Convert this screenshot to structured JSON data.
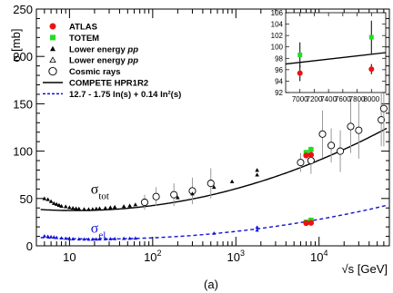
{
  "chart_data": {
    "type": "scatter",
    "ylabel": "σ [mb]",
    "xlabel": "√s [GeV]",
    "caption": "(a)",
    "x_scale": "log",
    "xlim": [
      4,
      70000
    ],
    "ylim": [
      0,
      250
    ],
    "x_ticks": [
      {
        "value": 10,
        "label": "10"
      },
      {
        "value": 100,
        "label": "10",
        "sup": "2"
      },
      {
        "value": 1000,
        "label": "10",
        "sup": "3"
      },
      {
        "value": 10000,
        "label": "10",
        "sup": "4"
      }
    ],
    "y_ticks": [
      0,
      50,
      100,
      150,
      200,
      250
    ],
    "colors": {
      "atlas": "#ee1111",
      "totem": "#22dd22",
      "fit": "#1111cc",
      "lowpp": "#000000",
      "cosmic": "#000000",
      "compete": "#000000",
      "sigma_el": "#1111dd"
    },
    "legend": {
      "placement": "upper-left",
      "entries": [
        {
          "key": "atlas",
          "label": "ATLAS",
          "marker": "circle-filled"
        },
        {
          "key": "totem",
          "label": "TOTEM",
          "marker": "square-filled"
        },
        {
          "key": "lowpp_tot",
          "label": "Lower energy ",
          "label_italic": "pp",
          "marker": "triangle-filled"
        },
        {
          "key": "lowpp_el",
          "label": "Lower energy ",
          "label_italic": "pp",
          "marker": "triangle-open"
        },
        {
          "key": "cosmic",
          "label": "Cosmic rays",
          "marker": "circle-open"
        },
        {
          "key": "compete",
          "label": "COMPETE HPR1R2",
          "marker": "solid-line"
        },
        {
          "key": "fit",
          "label": "12.7 - 1.75 ln(s) + 0.14 ln²(s)",
          "marker": "dashed-line"
        }
      ]
    },
    "annotations": [
      {
        "text": "σ",
        "sub": "tot",
        "x": 18,
        "y": 55,
        "color": "#000000"
      },
      {
        "text": "σ",
        "sub": "el",
        "x": 18,
        "y": 14,
        "color": "#1111dd"
      }
    ],
    "series": [
      {
        "key": "atlas",
        "points": [
          [
            7000,
            95.4,
            1.4
          ],
          [
            8000,
            96.1,
            0.9
          ]
        ],
        "el_points": [
          [
            7000,
            24.0,
            0.6
          ],
          [
            8000,
            24.3,
            0.5
          ]
        ]
      },
      {
        "key": "totem",
        "points": [
          [
            7000,
            98.6,
            2.2
          ],
          [
            8000,
            101.7,
            2.9
          ]
        ],
        "el_points": [
          [
            7000,
            25.1,
            1.1
          ],
          [
            8000,
            27.1,
            1.4
          ]
        ]
      },
      {
        "key": "cosmic",
        "points": [
          [
            6000,
            88,
            10
          ],
          [
            8000,
            90,
            14
          ],
          [
            11000,
            118,
            25
          ],
          [
            14000,
            106,
            18
          ],
          [
            18000,
            100,
            22
          ],
          [
            24000,
            126,
            28
          ],
          [
            30000,
            122,
            30
          ],
          [
            56000,
            133,
            28
          ],
          [
            60000,
            145,
            40
          ],
          [
            80,
            46,
            8
          ],
          [
            110,
            52,
            10
          ],
          [
            180,
            54,
            12
          ],
          [
            300,
            58,
            14
          ],
          [
            500,
            66,
            16
          ]
        ]
      },
      {
        "key": "lowpp_tot",
        "points": [
          [
            5,
            50
          ],
          [
            5.5,
            49
          ],
          [
            6,
            47
          ],
          [
            6.5,
            45
          ],
          [
            7,
            44
          ],
          [
            7.5,
            43
          ],
          [
            8,
            42
          ],
          [
            9,
            41.5
          ],
          [
            10,
            40.5
          ],
          [
            11,
            40
          ],
          [
            12,
            39.5
          ],
          [
            13,
            39.2
          ],
          [
            15,
            38.8
          ],
          [
            17,
            38.6
          ],
          [
            19,
            38.8
          ],
          [
            21,
            39.2
          ],
          [
            23,
            39.5
          ],
          [
            27,
            40
          ],
          [
            31,
            40.5
          ],
          [
            35,
            41
          ],
          [
            45,
            41.7
          ],
          [
            53,
            42.5
          ],
          [
            62,
            43.5
          ],
          [
            200,
            51
          ],
          [
            300,
            55
          ],
          [
            546,
            62
          ],
          [
            900,
            68
          ],
          [
            1800,
            75
          ],
          [
            1800,
            80
          ]
        ]
      },
      {
        "key": "lowpp_el",
        "points": [
          [
            5,
            10.5
          ],
          [
            5.5,
            10
          ],
          [
            6,
            9.6
          ],
          [
            6.5,
            9.2
          ],
          [
            7,
            8.8
          ],
          [
            8,
            8.3
          ],
          [
            9,
            7.9
          ],
          [
            10,
            7.6
          ],
          [
            11,
            7.4
          ],
          [
            13,
            7.2
          ],
          [
            15,
            7.1
          ],
          [
            17,
            7.0
          ],
          [
            19,
            7.0
          ],
          [
            21,
            7.1
          ],
          [
            23,
            7.2
          ],
          [
            27,
            7.4
          ],
          [
            31,
            7.5
          ],
          [
            35,
            7.6
          ],
          [
            45,
            7.8
          ],
          [
            53,
            7.9
          ],
          [
            62,
            8.1
          ],
          [
            546,
            13.3
          ],
          [
            1800,
            16.6
          ],
          [
            1800,
            19.7
          ]
        ]
      }
    ],
    "inset": {
      "xlim": [
        6800,
        8200
      ],
      "ylim": [
        92,
        106
      ],
      "x_ticks": [
        "7000",
        "7200",
        "7400",
        "7600",
        "7800",
        "8000"
      ],
      "y_ticks": [
        "92",
        "94",
        "96",
        "98",
        "100",
        "102",
        "104",
        "106"
      ],
      "compete_line": [
        [
          6800,
          97.0
        ],
        [
          8200,
          99.0
        ]
      ]
    }
  }
}
